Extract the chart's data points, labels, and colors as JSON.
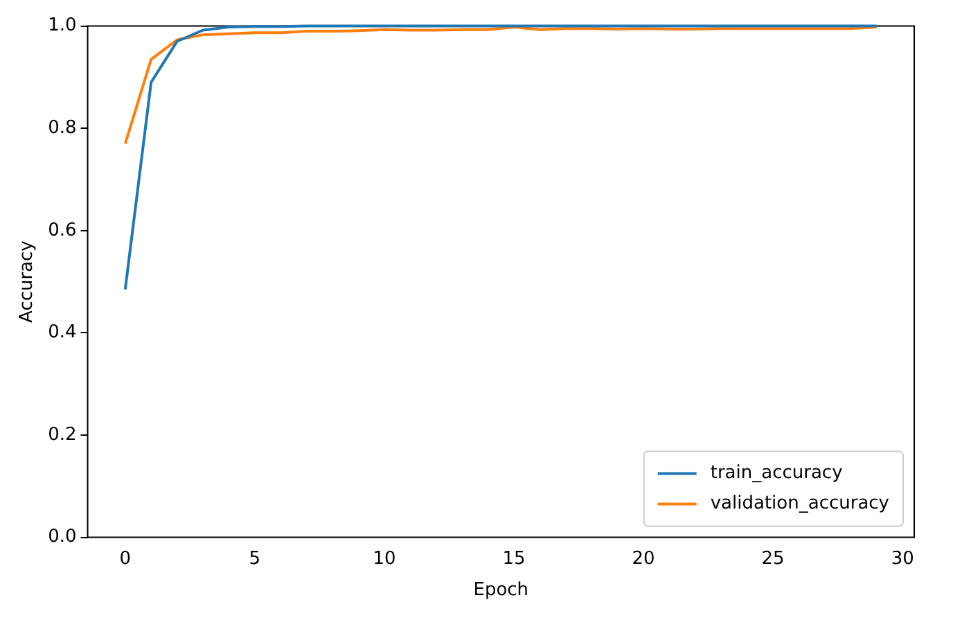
{
  "chart_data": {
    "type": "line",
    "xlabel": "Epoch",
    "ylabel": "Accuracy",
    "x": [
      0,
      1,
      2,
      3,
      4,
      5,
      6,
      7,
      8,
      9,
      10,
      11,
      12,
      13,
      14,
      15,
      16,
      17,
      18,
      19,
      20,
      21,
      22,
      23,
      24,
      25,
      26,
      27,
      28,
      29
    ],
    "series": [
      {
        "name": "train_accuracy",
        "color": "#1f77b4",
        "values": [
          0.485,
          0.89,
          0.97,
          0.992,
          0.998,
          0.999,
          0.999,
          1.0,
          1.0,
          1.0,
          1.0,
          1.0,
          1.0,
          1.0,
          1.0,
          1.0,
          1.0,
          1.0,
          1.0,
          1.0,
          1.0,
          1.0,
          1.0,
          1.0,
          1.0,
          1.0,
          1.0,
          1.0,
          1.0,
          1.0
        ]
      },
      {
        "name": "validation_accuracy",
        "color": "#ff7f0e",
        "values": [
          0.77,
          0.935,
          0.973,
          0.983,
          0.985,
          0.987,
          0.987,
          0.99,
          0.99,
          0.991,
          0.993,
          0.992,
          0.992,
          0.993,
          0.993,
          0.998,
          0.993,
          0.995,
          0.995,
          0.994,
          0.995,
          0.994,
          0.994,
          0.995,
          0.995,
          0.995,
          0.995,
          0.995,
          0.995,
          0.998
        ]
      }
    ],
    "xlim": [
      -1.45,
      30.45
    ],
    "xticks": [
      0,
      5,
      10,
      15,
      20,
      25,
      30
    ],
    "ylim": [
      0,
      1
    ],
    "yticks": [
      {
        "value": 0,
        "label": "0.0"
      },
      {
        "value": 0.2,
        "label": "0.2"
      },
      {
        "value": 0.4,
        "label": "0.4"
      },
      {
        "value": 0.6,
        "label": "0.6"
      },
      {
        "value": 0.8,
        "label": "0.8"
      },
      {
        "value": 1,
        "label": "1.0"
      }
    ],
    "legend": "bottom right",
    "grid": false
  }
}
